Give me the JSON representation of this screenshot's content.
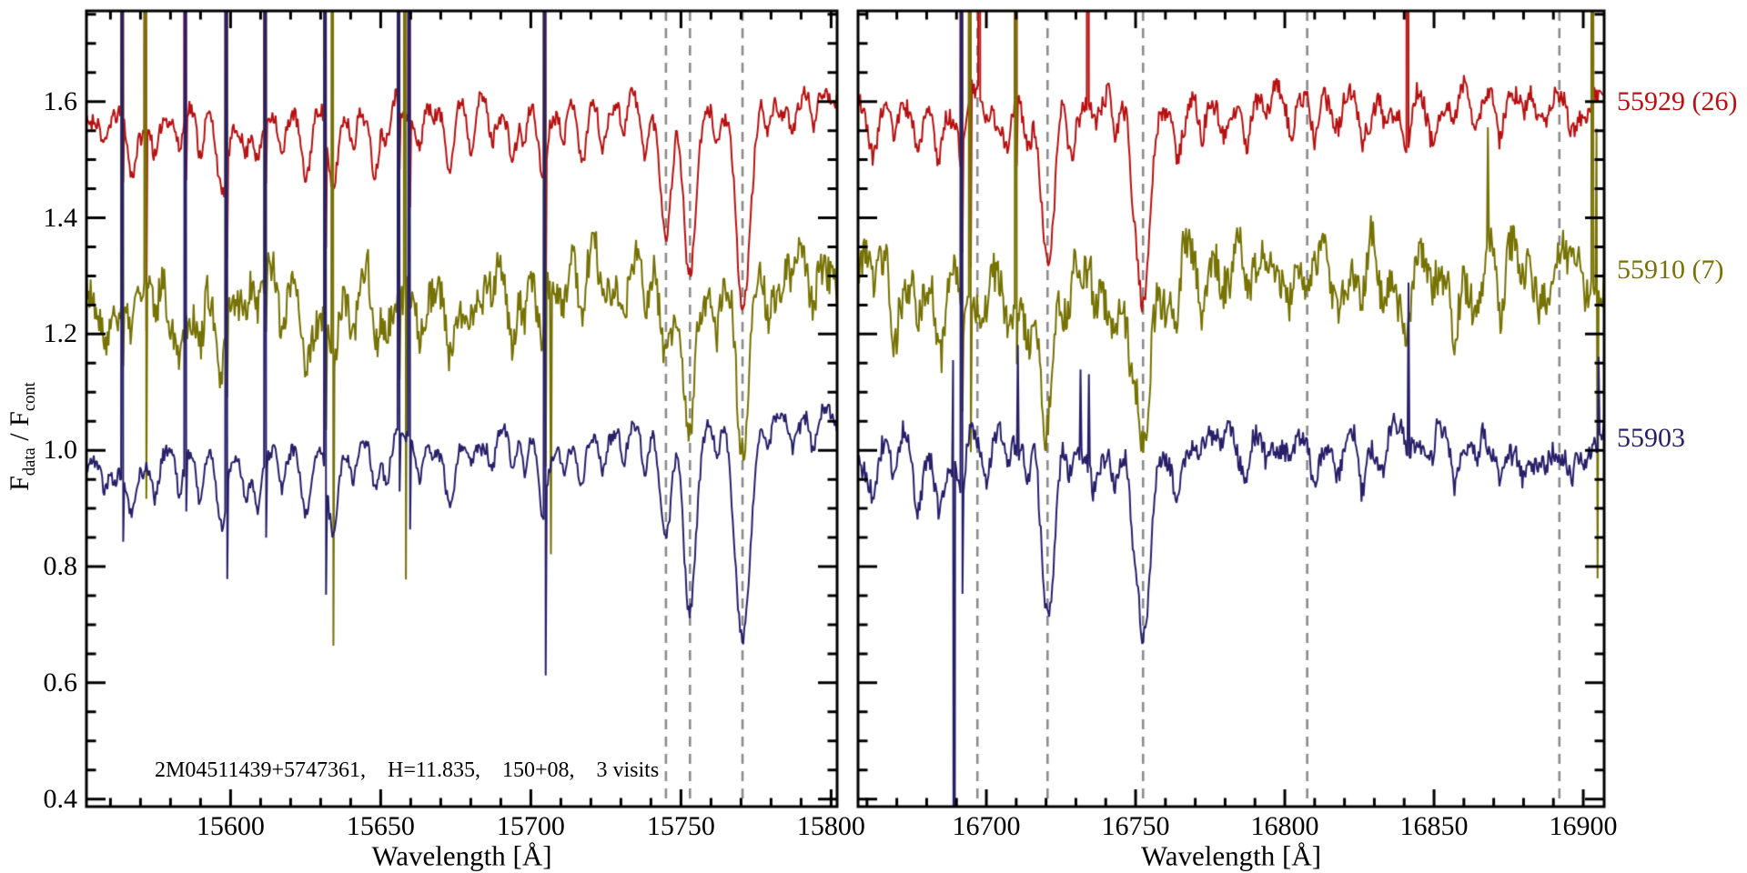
{
  "figure": {
    "background": "#ffffff",
    "frame_color": "#000000",
    "dashed_line_color": "#8c8c8c",
    "annotation": "2M04511439+5747361,    H=11.835,    150+08,    3 visits",
    "ylabel_parts": {
      "f1": "F",
      "sub1": "data",
      "mid": " / F",
      "sub2": "cont"
    },
    "right_labels": [
      {
        "text": "55929 (26)",
        "color": "#b81111",
        "y_value": 1.6
      },
      {
        "text": "55910 (7)",
        "color": "#767203",
        "y_value": 1.31
      },
      {
        "text": "55903",
        "color": "#272069",
        "y_value": 1.02
      }
    ]
  },
  "chart_data": [
    {
      "type": "line",
      "title": "",
      "xlabel": "Wavelength [Å]",
      "ylabel": "F_data / F_cont",
      "xlim": [
        15552,
        15802
      ],
      "ylim": [
        0.387,
        1.756
      ],
      "x_major_ticks": [
        15600,
        15650,
        15700,
        15750,
        15800
      ],
      "x_tick_labels": [
        "15600",
        "15650",
        "15700",
        "15750",
        "15800"
      ],
      "x_minor_step": 10,
      "y_major_ticks": [
        0.4,
        0.6,
        0.8,
        1.0,
        1.2,
        1.4,
        1.6
      ],
      "y_tick_labels": [
        "0.4",
        "0.6",
        "0.8",
        "1.0",
        "1.2",
        "1.4",
        "1.6"
      ],
      "y_minor_step": 0.05,
      "grid": false,
      "legend_position": "right-margin",
      "dashed_vlines": [
        15745,
        15753,
        15770.5
      ],
      "series": [
        {
          "name": "55929 (26)",
          "mjd": "55929",
          "visits": 26,
          "color": "#b81111",
          "continuum": [
            1.565,
            1.605
          ],
          "noise_sigma": 0.015,
          "seed": 11
        },
        {
          "name": "55910 (7)",
          "mjd": "55910",
          "visits": 7,
          "color": "#767203",
          "continuum": [
            1.27,
            1.335
          ],
          "noise_sigma": 0.034,
          "seed": 22
        },
        {
          "name": "55903",
          "mjd": "55903",
          "color": "#272069",
          "continuum": [
            0.97,
            1.05
          ],
          "noise_sigma": 0.013,
          "seed": 33
        }
      ],
      "absorption_lines": [
        [
          15558,
          0.05,
          1.0
        ],
        [
          15567,
          0.1,
          1.4
        ],
        [
          15575,
          0.07,
          1.1
        ],
        [
          15583,
          0.05,
          1.0
        ],
        [
          15590,
          0.06,
          1.0
        ],
        [
          15597,
          0.13,
          1.6
        ],
        [
          15605,
          0.05,
          1.0
        ],
        [
          15609,
          0.07,
          1.1
        ],
        [
          15617,
          0.05,
          1.0
        ],
        [
          15625,
          0.11,
          1.5
        ],
        [
          15634,
          0.15,
          1.7
        ],
        [
          15641,
          0.05,
          1.0
        ],
        [
          15648,
          0.08,
          1.2
        ],
        [
          15652,
          0.06,
          1.0
        ],
        [
          15663,
          0.06,
          1.0
        ],
        [
          15673,
          0.1,
          1.4
        ],
        [
          15680,
          0.05,
          1.0
        ],
        [
          15687,
          0.07,
          1.1
        ],
        [
          15694,
          0.06,
          1.0
        ],
        [
          15698,
          0.07,
          1.0
        ],
        [
          15704,
          0.12,
          1.4
        ],
        [
          15711,
          0.05,
          1.0
        ],
        [
          15717,
          0.08,
          1.2
        ],
        [
          15724,
          0.05,
          1.0
        ],
        [
          15731,
          0.06,
          1.0
        ],
        [
          15738,
          0.08,
          1.2
        ],
        [
          15745,
          0.2,
          1.9
        ],
        [
          15753,
          0.3,
          2.1
        ],
        [
          15762,
          0.07,
          1.1
        ],
        [
          15770.5,
          0.34,
          2.4
        ],
        [
          15779,
          0.06,
          1.0
        ],
        [
          15787,
          0.05,
          1.0
        ],
        [
          15794,
          0.07,
          1.1
        ]
      ],
      "spikes": [
        {
          "x": 15564.0,
          "series": [
            0,
            1,
            2
          ],
          "up": 3,
          "down": 0.12
        },
        {
          "x": 15571.5,
          "series": [
            0,
            1
          ],
          "up": 3,
          "down": 0.35
        },
        {
          "x": 15585.0,
          "series": [
            0,
            2
          ],
          "up": 3,
          "down": 0.1
        },
        {
          "x": 15598.5,
          "series": [
            0,
            1,
            2
          ],
          "up": 3,
          "down": 0.15
        },
        {
          "x": 15611.5,
          "series": [
            0,
            1,
            2
          ],
          "up": 3,
          "down": 0.12
        },
        {
          "x": 15631.5,
          "series": [
            0,
            1,
            2
          ],
          "up": 3,
          "down": 0.18
        },
        {
          "x": 15634.0,
          "series": [
            1
          ],
          "up": 3,
          "down": 0.5
        },
        {
          "x": 15656.0,
          "series": [
            0,
            1,
            2
          ],
          "up": 3,
          "down": 0.1
        },
        {
          "x": 15658.0,
          "series": [
            1
          ],
          "up": 3,
          "down": 0.52
        },
        {
          "x": 15659.5,
          "series": [
            0,
            2
          ],
          "up": 3,
          "down": 0.15
        },
        {
          "x": 15704.5,
          "series": [
            0,
            1,
            2
          ],
          "up": 3,
          "down": 0.3
        },
        {
          "x": 15706.5,
          "series": [
            1
          ],
          "up": 0,
          "down": 0.44
        }
      ]
    },
    {
      "type": "line",
      "title": "",
      "xlabel": "Wavelength [Å]",
      "ylabel": "F_data / F_cont",
      "xlim": [
        16657,
        16907
      ],
      "ylim": [
        0.387,
        1.756
      ],
      "x_major_ticks": [
        16700,
        16750,
        16800,
        16850,
        16900
      ],
      "x_tick_labels": [
        "16700",
        "16750",
        "16800",
        "16850",
        "16900"
      ],
      "x_minor_step": 10,
      "y_major_ticks": [
        0.4,
        0.6,
        0.8,
        1.0,
        1.2,
        1.4,
        1.6
      ],
      "y_tick_labels": [],
      "y_minor_step": 0.05,
      "grid": false,
      "legend_position": "right-margin",
      "dashed_vlines": [
        16697,
        16720.5,
        16752.5,
        16807.5,
        16892
      ],
      "series": [
        {
          "name": "55929 (26)",
          "mjd": "55929",
          "visits": 26,
          "color": "#b81111",
          "continuum": [
            1.585,
            1.6
          ],
          "noise_sigma": 0.018,
          "seed": 44
        },
        {
          "name": "55910 (7)",
          "mjd": "55910",
          "visits": 7,
          "color": "#767203",
          "continuum": [
            1.3,
            1.315
          ],
          "noise_sigma": 0.036,
          "seed": 55
        },
        {
          "name": "55903",
          "mjd": "55903",
          "color": "#272069",
          "continuum": [
            1.005,
            1.015
          ],
          "noise_sigma": 0.02,
          "seed": 66
        }
      ],
      "absorption_lines": [
        [
          16662,
          0.05,
          1.0
        ],
        [
          16669,
          0.06,
          1.0
        ],
        [
          16677,
          0.07,
          1.1
        ],
        [
          16684,
          0.1,
          1.4
        ],
        [
          16692,
          0.06,
          1.0
        ],
        [
          16700,
          0.05,
          1.0
        ],
        [
          16707,
          0.06,
          1.0
        ],
        [
          16714,
          0.07,
          1.1
        ],
        [
          16720.5,
          0.27,
          2.1
        ],
        [
          16728,
          0.07,
          1.1
        ],
        [
          16736,
          0.05,
          1.0
        ],
        [
          16743,
          0.06,
          1.0
        ],
        [
          16749,
          0.07,
          1.1
        ],
        [
          16752.5,
          0.32,
          2.2
        ],
        [
          16764,
          0.07,
          1.1
        ],
        [
          16772,
          0.05,
          1.0
        ],
        [
          16779,
          0.04,
          1.0
        ],
        [
          16787,
          0.06,
          1.0
        ],
        [
          16794,
          0.04,
          1.0
        ],
        [
          16802,
          0.05,
          1.0
        ],
        [
          16810,
          0.06,
          1.1
        ],
        [
          16818,
          0.04,
          1.0
        ],
        [
          16826,
          0.05,
          1.0
        ],
        [
          16833,
          0.04,
          1.0
        ],
        [
          16841,
          0.05,
          1.0
        ],
        [
          16849,
          0.04,
          1.0
        ],
        [
          16857,
          0.06,
          1.1
        ],
        [
          16865,
          0.04,
          1.0
        ],
        [
          16872,
          0.05,
          1.0
        ],
        [
          16880,
          0.04,
          1.0
        ],
        [
          16888,
          0.05,
          1.0
        ],
        [
          16896,
          0.04,
          1.0
        ]
      ],
      "spikes": [
        {
          "x": 16689.0,
          "series": [
            2
          ],
          "up": 0.2,
          "down": 2.0
        },
        {
          "x": 16691.5,
          "series": [
            0,
            1,
            2
          ],
          "up": 3,
          "down": 0.15
        },
        {
          "x": 16694.5,
          "series": [
            0,
            1
          ],
          "up": 3,
          "down": 0.3
        },
        {
          "x": 16697.5,
          "series": [
            0
          ],
          "up": 3,
          "down": 0
        },
        {
          "x": 16710.0,
          "series": [
            0,
            1
          ],
          "up": 3,
          "down": 0.12
        },
        {
          "x": 16710.5,
          "series": [
            2
          ],
          "up": 0.18,
          "down": 0
        },
        {
          "x": 16731.5,
          "series": [
            2
          ],
          "up": 0.16,
          "down": 0
        },
        {
          "x": 16734.0,
          "series": [
            0
          ],
          "up": 3,
          "down": 0
        },
        {
          "x": 16734.5,
          "series": [
            2
          ],
          "up": 0.18,
          "down": 0
        },
        {
          "x": 16841.0,
          "series": [
            0
          ],
          "up": 3,
          "down": 0
        },
        {
          "x": 16841.5,
          "series": [
            2
          ],
          "up": 0.31,
          "down": 0
        },
        {
          "x": 16868.0,
          "series": [
            1
          ],
          "up": 0.22,
          "down": 0
        },
        {
          "x": 16903.0,
          "series": [
            0,
            1
          ],
          "up": 3,
          "down": 0
        },
        {
          "x": 16904.5,
          "series": [
            1
          ],
          "up": 0.3,
          "down": 0.52
        },
        {
          "x": 16905.0,
          "series": [
            2
          ],
          "up": 0.14,
          "down": 0
        }
      ]
    }
  ]
}
